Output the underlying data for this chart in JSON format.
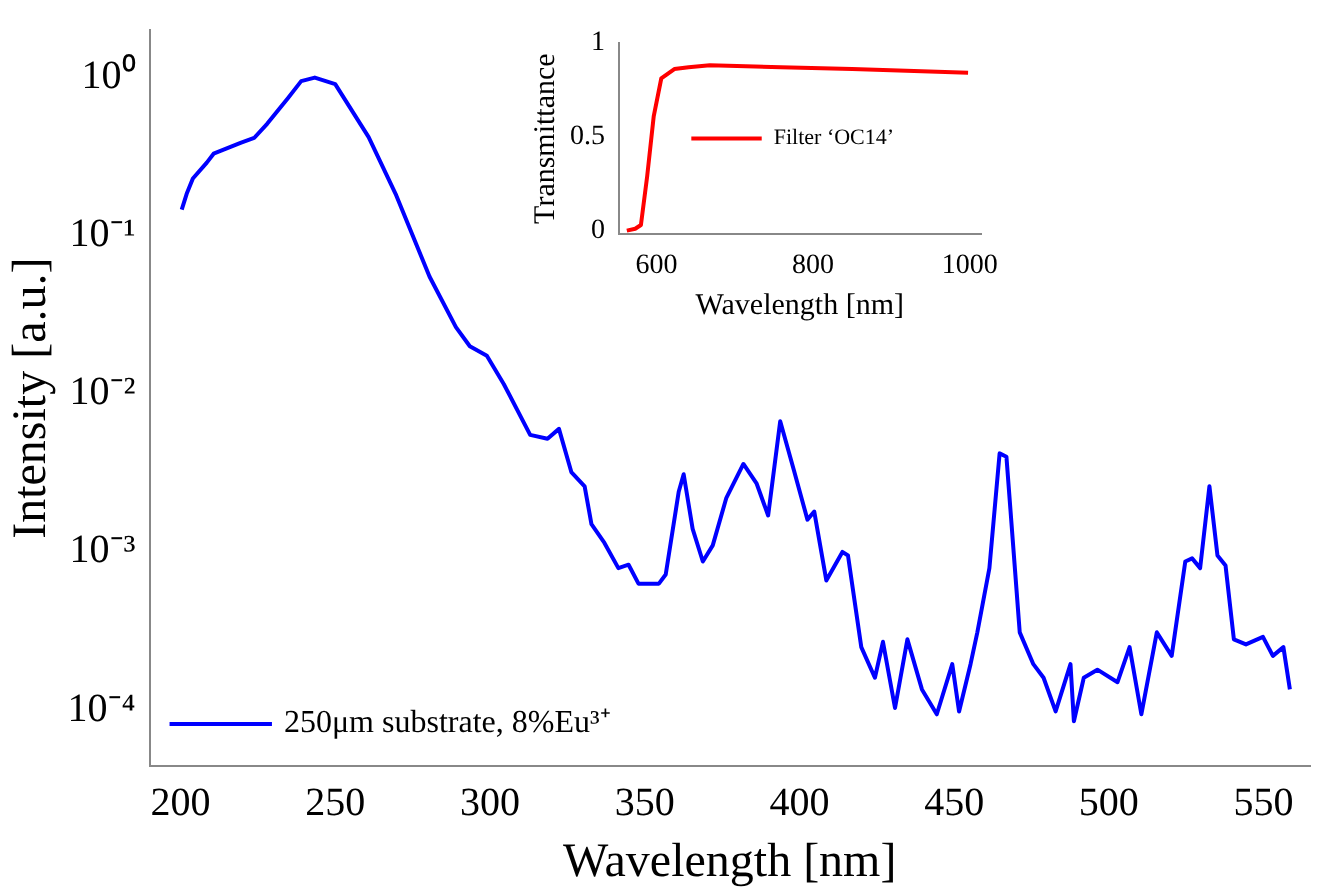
{
  "chart_data": [
    {
      "type": "line",
      "xlabel": "Wavelength [nm]",
      "ylabel": "Intensity [a.u.]",
      "log": "y",
      "xlim": [
        190,
        565
      ],
      "xticks": [
        200,
        250,
        300,
        350,
        400,
        450,
        500,
        550
      ],
      "ylim": [
        4.4e-05,
        2
      ],
      "yticks": [
        {
          "value": 0.0001,
          "label": "10⁻⁴"
        },
        {
          "value": 0.001,
          "label": "10⁻³"
        },
        {
          "value": 0.01,
          "label": "10⁻²"
        },
        {
          "value": 0.1,
          "label": "10⁻¹"
        },
        {
          "value": 1,
          "label": "10⁰"
        }
      ],
      "legend": "bottom left",
      "grid": false,
      "series": [
        {
          "name": "250μm substrate, 8%Eu³⁺",
          "color": "#0000ff",
          "x": [
            200.4,
            202,
            204,
            208.5,
            210.7,
            219.4,
            223.8,
            228,
            234.7,
            239,
            243.4,
            250,
            260.8,
            269.5,
            280.5,
            289,
            293.5,
            299,
            304.5,
            313,
            318.6,
            322.3,
            326.3,
            330.6,
            332.8,
            337,
            341.5,
            344.8,
            348,
            354.6,
            356.8,
            361,
            362.6,
            365.5,
            368.8,
            372,
            376.4,
            381.9,
            386.2,
            389.9,
            393.8,
            398.2,
            402.6,
            404.8,
            408.7,
            413.9,
            415.7,
            420,
            424.4,
            427,
            430.9,
            434.9,
            439.6,
            444.4,
            449.4,
            451.6,
            455.3,
            457.5,
            461.4,
            464.7,
            466.9,
            471.2,
            475.6,
            478.9,
            482.8,
            487.6,
            488.7,
            491.9,
            496.3,
            502.8,
            506.7,
            510.5,
            515.5,
            520.3,
            524.7,
            526.9,
            529.5,
            532.5,
            535.1,
            537.7,
            540.4,
            544.3,
            549.8,
            553,
            556.4,
            558.5
          ],
          "values": [
            0.146,
            0.184,
            0.23,
            0.29,
            0.33,
            0.386,
            0.415,
            0.51,
            0.74,
            0.95,
            1.0,
            0.91,
            0.42,
            0.184,
            0.055,
            0.0264,
            0.02,
            0.0174,
            0.0115,
            0.0055,
            0.0052,
            0.006,
            0.0032,
            0.0026,
            0.0015,
            0.00114,
            0.00079,
            0.00083,
            0.00063,
            0.00063,
            0.00072,
            0.0024,
            0.0031,
            0.0014,
            0.00087,
            0.0011,
            0.0022,
            0.0036,
            0.0027,
            0.0017,
            0.0067,
            0.0033,
            0.0016,
            0.0018,
            0.00066,
            0.001,
            0.00095,
            0.00025,
            0.00016,
            0.00027,
            0.000103,
            0.00028,
            0.000135,
            9.4e-05,
            0.000195,
            9.8e-05,
            0.000195,
            0.00031,
            0.00079,
            0.0042,
            0.004,
            0.00031,
            0.000195,
            0.00016,
            9.8e-05,
            0.000195,
            8.5e-05,
            0.00016,
            0.00018,
            0.00015,
            0.00025,
            9.4e-05,
            0.00031,
            0.00022,
            0.00087,
            0.00091,
            0.00079,
            0.0026,
            0.00095,
            0.00082,
            0.00028,
            0.00026,
            0.00029,
            0.00022,
            0.00025,
            0.000135
          ]
        }
      ]
    },
    {
      "type": "line",
      "xlabel": "Wavelength [nm]",
      "ylabel": "Transmittance",
      "xlim": [
        552,
        1014
      ],
      "xticks": [
        600,
        800,
        1000
      ],
      "ylim": [
        -0.02,
        1
      ],
      "yticks": [
        0,
        0.5,
        1
      ],
      "legend": "center left",
      "grid": false,
      "series": [
        {
          "name": "Filter ‘OC14’",
          "color": "#ff0000",
          "x": [
            562,
            572.7,
            580,
            588,
            596.4,
            606,
            622.7,
            641,
            668,
            759,
            850,
            998
          ],
          "values": [
            0,
            0.01,
            0.03,
            0.29,
            0.61,
            0.81,
            0.86,
            0.87,
            0.88,
            0.87,
            0.86,
            0.84
          ]
        }
      ]
    }
  ]
}
